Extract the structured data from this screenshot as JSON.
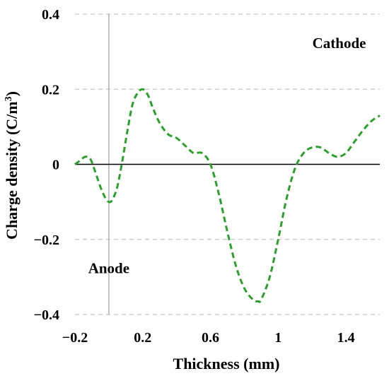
{
  "chart_data": {
    "type": "line",
    "xlabel": "Thickness (mm)",
    "ylabel": "Charge density (C/m",
    "ylabel_sup": "3",
    "ylabel_end": ")",
    "xlim": [
      -0.2,
      1.6
    ],
    "ylim": [
      -0.4,
      0.4
    ],
    "x_ticks": [
      -0.2,
      0.2,
      0.6,
      1.0,
      1.4
    ],
    "x_tick_labels": [
      "−0.2",
      "0.2",
      "0.6",
      "1",
      "1.4"
    ],
    "y_ticks": [
      0.4,
      0.2,
      0,
      -0.2,
      -0.4
    ],
    "y_tick_labels": [
      "0.4",
      "0.2",
      "0",
      "−0.2",
      "−0.4"
    ],
    "grid": "horizontal dashed",
    "zero_line": true,
    "vertical_marker_x": 0,
    "annotations": [
      {
        "text": "Cathode",
        "x": 1.36,
        "y": 0.31
      },
      {
        "text": "Anode",
        "x": 0.0,
        "y": -0.29
      }
    ],
    "series": [
      {
        "color": "#2ca02c",
        "style": "dashed",
        "x": [
          -0.2,
          -0.17,
          -0.14,
          -0.11,
          -0.08,
          -0.05,
          -0.02,
          0.0,
          0.02,
          0.05,
          0.08,
          0.11,
          0.14,
          0.17,
          0.2,
          0.23,
          0.26,
          0.3,
          0.35,
          0.4,
          0.45,
          0.5,
          0.55,
          0.6,
          0.65,
          0.7,
          0.75,
          0.8,
          0.85,
          0.88,
          0.9,
          0.95,
          1.0,
          1.05,
          1.1,
          1.15,
          1.2,
          1.25,
          1.3,
          1.35,
          1.4,
          1.45,
          1.5,
          1.55,
          1.6
        ],
        "y": [
          0.0,
          0.01,
          0.02,
          0.015,
          -0.02,
          -0.06,
          -0.09,
          -0.1,
          -0.095,
          -0.06,
          0.01,
          0.09,
          0.16,
          0.19,
          0.2,
          0.185,
          0.15,
          0.11,
          0.08,
          0.07,
          0.05,
          0.03,
          0.03,
          0.0,
          -0.08,
          -0.18,
          -0.27,
          -0.33,
          -0.36,
          -0.365,
          -0.36,
          -0.3,
          -0.2,
          -0.09,
          -0.01,
          0.03,
          0.045,
          0.045,
          0.03,
          0.02,
          0.03,
          0.06,
          0.09,
          0.115,
          0.13
        ]
      }
    ]
  }
}
